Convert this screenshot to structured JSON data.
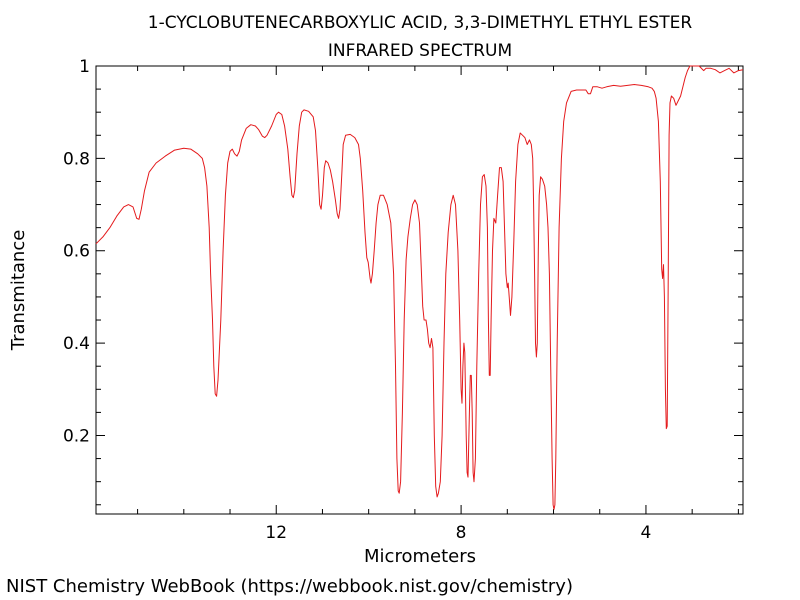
{
  "chart_data": {
    "type": "line",
    "title": [
      "1-CYCLOBUTENECARBOXYLIC ACID, 3,3-DIMETHYL ETHYL ESTER",
      "INFRARED SPECTRUM"
    ],
    "xlabel": "Micrometers",
    "ylabel": "Transmitance",
    "xlim": [
      15.9,
      1.9
    ],
    "ylim": [
      0.03,
      1.0
    ],
    "x_ticks": [
      12,
      8,
      4
    ],
    "x_tick_labels": [
      "12",
      "8",
      "4"
    ],
    "y_ticks": [
      0.2,
      0.4,
      0.6,
      0.8,
      1.0
    ],
    "y_tick_labels": [
      "0.2",
      "0.4",
      "0.6",
      "0.8",
      "1"
    ],
    "grid": false,
    "series": [
      {
        "name": "IR spectrum",
        "color": "#e41a1c",
        "points": [
          [
            15.9,
            0.615
          ],
          [
            15.75,
            0.63
          ],
          [
            15.6,
            0.65
          ],
          [
            15.45,
            0.675
          ],
          [
            15.3,
            0.695
          ],
          [
            15.2,
            0.7
          ],
          [
            15.1,
            0.695
          ],
          [
            15.02,
            0.67
          ],
          [
            14.97,
            0.668
          ],
          [
            14.92,
            0.69
          ],
          [
            14.85,
            0.73
          ],
          [
            14.75,
            0.77
          ],
          [
            14.6,
            0.79
          ],
          [
            14.4,
            0.805
          ],
          [
            14.2,
            0.818
          ],
          [
            14.0,
            0.822
          ],
          [
            13.85,
            0.82
          ],
          [
            13.7,
            0.81
          ],
          [
            13.6,
            0.8
          ],
          [
            13.55,
            0.78
          ],
          [
            13.5,
            0.74
          ],
          [
            13.45,
            0.65
          ],
          [
            13.42,
            0.55
          ],
          [
            13.38,
            0.45
          ],
          [
            13.35,
            0.35
          ],
          [
            13.32,
            0.29
          ],
          [
            13.29,
            0.285
          ],
          [
            13.26,
            0.32
          ],
          [
            13.2,
            0.45
          ],
          [
            13.15,
            0.6
          ],
          [
            13.1,
            0.72
          ],
          [
            13.05,
            0.79
          ],
          [
            13.0,
            0.815
          ],
          [
            12.95,
            0.82
          ],
          [
            12.9,
            0.81
          ],
          [
            12.85,
            0.805
          ],
          [
            12.8,
            0.815
          ],
          [
            12.75,
            0.84
          ],
          [
            12.65,
            0.865
          ],
          [
            12.55,
            0.873
          ],
          [
            12.45,
            0.87
          ],
          [
            12.38,
            0.862
          ],
          [
            12.3,
            0.848
          ],
          [
            12.25,
            0.845
          ],
          [
            12.2,
            0.85
          ],
          [
            12.1,
            0.87
          ],
          [
            12.0,
            0.895
          ],
          [
            11.95,
            0.9
          ],
          [
            11.88,
            0.895
          ],
          [
            11.82,
            0.87
          ],
          [
            11.75,
            0.82
          ],
          [
            11.7,
            0.76
          ],
          [
            11.66,
            0.72
          ],
          [
            11.63,
            0.715
          ],
          [
            11.6,
            0.73
          ],
          [
            11.55,
            0.81
          ],
          [
            11.5,
            0.87
          ],
          [
            11.45,
            0.9
          ],
          [
            11.4,
            0.905
          ],
          [
            11.3,
            0.902
          ],
          [
            11.2,
            0.89
          ],
          [
            11.15,
            0.86
          ],
          [
            11.1,
            0.78
          ],
          [
            11.06,
            0.7
          ],
          [
            11.03,
            0.69
          ],
          [
            11.0,
            0.72
          ],
          [
            10.96,
            0.78
          ],
          [
            10.93,
            0.795
          ],
          [
            10.88,
            0.79
          ],
          [
            10.83,
            0.775
          ],
          [
            10.78,
            0.75
          ],
          [
            10.72,
            0.71
          ],
          [
            10.68,
            0.68
          ],
          [
            10.65,
            0.67
          ],
          [
            10.62,
            0.69
          ],
          [
            10.58,
            0.77
          ],
          [
            10.55,
            0.83
          ],
          [
            10.5,
            0.85
          ],
          [
            10.4,
            0.852
          ],
          [
            10.3,
            0.845
          ],
          [
            10.22,
            0.83
          ],
          [
            10.18,
            0.8
          ],
          [
            10.13,
            0.73
          ],
          [
            10.08,
            0.64
          ],
          [
            10.04,
            0.585
          ],
          [
            10.01,
            0.575
          ],
          [
            9.97,
            0.54
          ],
          [
            9.95,
            0.53
          ],
          [
            9.92,
            0.55
          ],
          [
            9.88,
            0.6
          ],
          [
            9.84,
            0.66
          ],
          [
            9.8,
            0.7
          ],
          [
            9.75,
            0.72
          ],
          [
            9.68,
            0.72
          ],
          [
            9.6,
            0.7
          ],
          [
            9.52,
            0.66
          ],
          [
            9.46,
            0.55
          ],
          [
            9.42,
            0.35
          ],
          [
            9.39,
            0.15
          ],
          [
            9.36,
            0.08
          ],
          [
            9.34,
            0.075
          ],
          [
            9.31,
            0.1
          ],
          [
            9.27,
            0.25
          ],
          [
            9.23,
            0.45
          ],
          [
            9.19,
            0.58
          ],
          [
            9.15,
            0.63
          ],
          [
            9.1,
            0.67
          ],
          [
            9.05,
            0.7
          ],
          [
            9.0,
            0.71
          ],
          [
            8.95,
            0.7
          ],
          [
            8.9,
            0.66
          ],
          [
            8.86,
            0.56
          ],
          [
            8.83,
            0.48
          ],
          [
            8.8,
            0.45
          ],
          [
            8.76,
            0.45
          ],
          [
            8.73,
            0.43
          ],
          [
            8.7,
            0.4
          ],
          [
            8.67,
            0.39
          ],
          [
            8.64,
            0.41
          ],
          [
            8.61,
            0.39
          ],
          [
            8.58,
            0.2
          ],
          [
            8.55,
            0.09
          ],
          [
            8.52,
            0.067
          ],
          [
            8.49,
            0.075
          ],
          [
            8.45,
            0.1
          ],
          [
            8.41,
            0.2
          ],
          [
            8.37,
            0.4
          ],
          [
            8.33,
            0.55
          ],
          [
            8.28,
            0.64
          ],
          [
            8.22,
            0.7
          ],
          [
            8.17,
            0.72
          ],
          [
            8.12,
            0.7
          ],
          [
            8.07,
            0.6
          ],
          [
            8.03,
            0.45
          ],
          [
            8.0,
            0.3
          ],
          [
            7.98,
            0.27
          ],
          [
            7.96,
            0.35
          ],
          [
            7.94,
            0.4
          ],
          [
            7.92,
            0.38
          ],
          [
            7.89,
            0.2
          ],
          [
            7.87,
            0.12
          ],
          [
            7.85,
            0.11
          ],
          [
            7.82,
            0.25
          ],
          [
            7.8,
            0.33
          ],
          [
            7.78,
            0.33
          ],
          [
            7.76,
            0.25
          ],
          [
            7.74,
            0.12
          ],
          [
            7.72,
            0.1
          ],
          [
            7.69,
            0.15
          ],
          [
            7.66,
            0.35
          ],
          [
            7.62,
            0.55
          ],
          [
            7.58,
            0.7
          ],
          [
            7.54,
            0.76
          ],
          [
            7.5,
            0.765
          ],
          [
            7.46,
            0.74
          ],
          [
            7.43,
            0.65
          ],
          [
            7.41,
            0.45
          ],
          [
            7.39,
            0.33
          ],
          [
            7.37,
            0.33
          ],
          [
            7.35,
            0.45
          ],
          [
            7.32,
            0.6
          ],
          [
            7.29,
            0.67
          ],
          [
            7.25,
            0.66
          ],
          [
            7.21,
            0.72
          ],
          [
            7.17,
            0.78
          ],
          [
            7.13,
            0.78
          ],
          [
            7.09,
            0.75
          ],
          [
            7.06,
            0.65
          ],
          [
            7.03,
            0.55
          ],
          [
            7.0,
            0.52
          ],
          [
            6.98,
            0.53
          ],
          [
            6.96,
            0.5
          ],
          [
            6.93,
            0.46
          ],
          [
            6.9,
            0.5
          ],
          [
            6.86,
            0.62
          ],
          [
            6.82,
            0.75
          ],
          [
            6.77,
            0.83
          ],
          [
            6.72,
            0.855
          ],
          [
            6.67,
            0.85
          ],
          [
            6.62,
            0.845
          ],
          [
            6.57,
            0.83
          ],
          [
            6.52,
            0.84
          ],
          [
            6.48,
            0.83
          ],
          [
            6.45,
            0.8
          ],
          [
            6.43,
            0.7
          ],
          [
            6.41,
            0.55
          ],
          [
            6.39,
            0.4
          ],
          [
            6.37,
            0.37
          ],
          [
            6.35,
            0.4
          ],
          [
            6.33,
            0.6
          ],
          [
            6.31,
            0.72
          ],
          [
            6.28,
            0.76
          ],
          [
            6.24,
            0.755
          ],
          [
            6.19,
            0.74
          ],
          [
            6.15,
            0.7
          ],
          [
            6.12,
            0.65
          ],
          [
            6.09,
            0.55
          ],
          [
            6.06,
            0.35
          ],
          [
            6.03,
            0.15
          ],
          [
            6.01,
            0.05
          ],
          [
            5.99,
            0.04
          ],
          [
            5.97,
            0.05
          ],
          [
            5.95,
            0.15
          ],
          [
            5.92,
            0.4
          ],
          [
            5.88,
            0.65
          ],
          [
            5.83,
            0.8
          ],
          [
            5.78,
            0.88
          ],
          [
            5.72,
            0.92
          ],
          [
            5.62,
            0.945
          ],
          [
            5.5,
            0.948
          ],
          [
            5.4,
            0.948
          ],
          [
            5.3,
            0.948
          ],
          [
            5.25,
            0.94
          ],
          [
            5.2,
            0.94
          ],
          [
            5.15,
            0.955
          ],
          [
            5.05,
            0.955
          ],
          [
            4.95,
            0.952
          ],
          [
            4.85,
            0.955
          ],
          [
            4.7,
            0.958
          ],
          [
            4.55,
            0.956
          ],
          [
            4.4,
            0.958
          ],
          [
            4.25,
            0.96
          ],
          [
            4.1,
            0.958
          ],
          [
            3.95,
            0.955
          ],
          [
            3.87,
            0.952
          ],
          [
            3.82,
            0.945
          ],
          [
            3.78,
            0.93
          ],
          [
            3.73,
            0.88
          ],
          [
            3.69,
            0.75
          ],
          [
            3.66,
            0.56
          ],
          [
            3.64,
            0.54
          ],
          [
            3.62,
            0.57
          ],
          [
            3.6,
            0.5
          ],
          [
            3.58,
            0.3
          ],
          [
            3.56,
            0.215
          ],
          [
            3.54,
            0.22
          ],
          [
            3.52,
            0.5
          ],
          [
            3.5,
            0.85
          ],
          [
            3.48,
            0.92
          ],
          [
            3.45,
            0.935
          ],
          [
            3.4,
            0.93
          ],
          [
            3.35,
            0.915
          ],
          [
            3.3,
            0.925
          ],
          [
            3.25,
            0.935
          ],
          [
            3.2,
            0.955
          ],
          [
            3.15,
            0.975
          ],
          [
            3.1,
            0.99
          ],
          [
            3.05,
            1.0
          ],
          [
            2.95,
            1.0
          ],
          [
            2.85,
            1.0
          ],
          [
            2.75,
            0.99
          ],
          [
            2.7,
            0.995
          ],
          [
            2.6,
            0.995
          ],
          [
            2.5,
            0.992
          ],
          [
            2.4,
            0.985
          ],
          [
            2.3,
            0.99
          ],
          [
            2.2,
            0.995
          ],
          [
            2.1,
            0.985
          ],
          [
            2.0,
            0.99
          ],
          [
            1.9,
            0.992
          ]
        ]
      }
    ]
  },
  "footer": "NIST Chemistry WebBook (https://webbook.nist.gov/chemistry)"
}
